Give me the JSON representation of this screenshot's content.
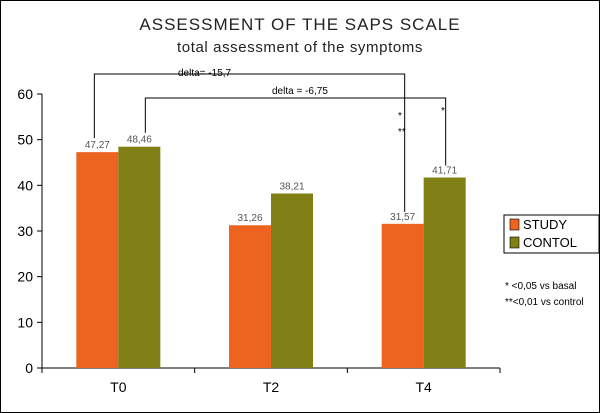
{
  "chart_data": {
    "type": "bar",
    "title": "ASSESSMENT OF THE SAPS SCALE",
    "subtitle": "total assessment of the symptoms",
    "categories": [
      "T0",
      "T2",
      "T4"
    ],
    "series": [
      {
        "name": "STUDY",
        "color": "#EC6420",
        "values": [
          47.27,
          31.26,
          31.57
        ],
        "labels": [
          "47,27",
          "31,26",
          "31,57"
        ]
      },
      {
        "name": "CONTOL",
        "color": "#7F7F16",
        "values": [
          48.46,
          38.21,
          41.71
        ],
        "labels": [
          "48,46",
          "38,21",
          "41,71"
        ]
      }
    ],
    "ylim": [
      0,
      60
    ],
    "yticks": [
      0,
      10,
      20,
      30,
      40,
      50,
      60
    ],
    "xlabel": "",
    "ylabel": "",
    "grid": false,
    "legend": "right",
    "annotations": {
      "delta_study": "delta= -15,7",
      "delta_control": "delta = -6,75",
      "star_study_1": "*",
      "star_study_2": "**",
      "star_control": "*"
    },
    "footnotes": [
      "* <0,05 vs basal",
      "**<0,01 vs control"
    ]
  }
}
